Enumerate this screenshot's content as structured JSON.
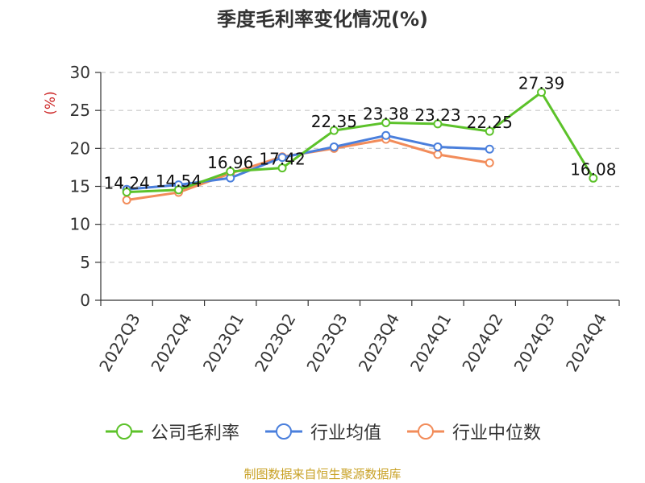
{
  "chart_data": {
    "type": "line",
    "title": "季度毛利率变化情况(%)",
    "ylabel": "(%)",
    "xlabel": "",
    "categories": [
      "2022Q3",
      "2022Q4",
      "2023Q1",
      "2023Q2",
      "2023Q3",
      "2023Q4",
      "2024Q1",
      "2024Q2",
      "2024Q3",
      "2024Q4"
    ],
    "ylim": [
      0,
      30
    ],
    "yticks": [
      0,
      5,
      10,
      15,
      20,
      25,
      30
    ],
    "grid": true,
    "legend_position": "bottom",
    "series": [
      {
        "name": "公司毛利率",
        "color": "#5cc22a",
        "values": [
          14.24,
          14.54,
          16.96,
          17.42,
          22.35,
          23.38,
          23.23,
          22.25,
          27.39,
          16.08
        ],
        "labels": [
          "14.24",
          "14.54",
          "16.96",
          "17.42",
          "22.35",
          "23.38",
          "23.23",
          "22.25",
          "27.39",
          "16.08"
        ]
      },
      {
        "name": "行业均值",
        "color": "#4a7fdc",
        "values": [
          14.6,
          15.2,
          16.1,
          18.8,
          20.2,
          21.7,
          20.2,
          19.9,
          null,
          null
        ]
      },
      {
        "name": "行业中位数",
        "color": "#f28c5a",
        "values": [
          13.2,
          14.2,
          16.7,
          18.9,
          20.0,
          21.2,
          19.2,
          18.1,
          null,
          null
        ]
      }
    ]
  },
  "footer": {
    "source": "制图数据来自恒生聚源数据库"
  }
}
